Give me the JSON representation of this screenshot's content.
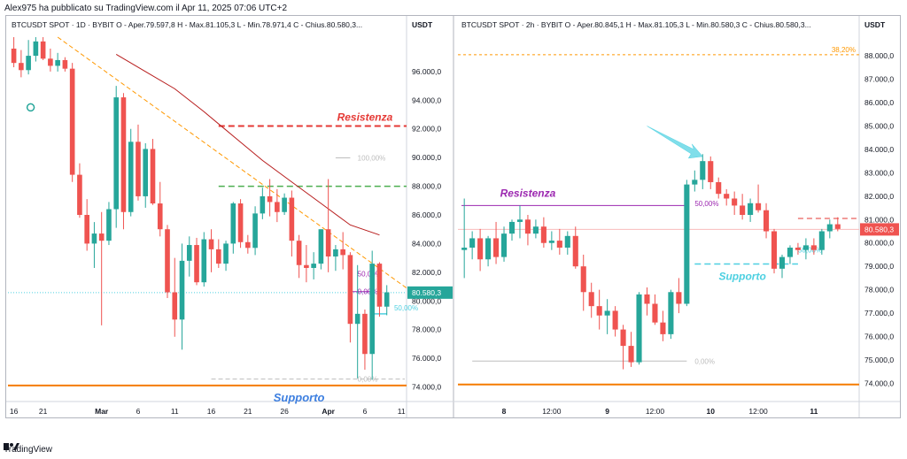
{
  "publisher": "Alex975 ha pubblicato su TradingView.com il Apr 11, 2025 07:06 UTC+2",
  "brand": "TradingView",
  "brand_icon": "tradingview-logo-icon",
  "colors": {
    "up": "#26a69a",
    "down": "#ef5350",
    "resistance_red": "#e53935",
    "support_orange": "#f57c00",
    "green_line": "#4caf50",
    "purple": "#9c27b0",
    "cyan": "#4dd0e1",
    "ma": "#b71c1c",
    "trend": "#ff9800",
    "price_line": "#ef5350",
    "fib_gray": "#bdbdbd"
  },
  "chart_data": [
    {
      "type": "candlestick",
      "header": "BTCUSDT SPOT · 1D · BYBIT  O - Aper.79.597,8  H - Max.81.105,3  L - Min.78.971,4  C - Chius.80.580,3...",
      "currency": "USDT",
      "y_ticks": [
        "74.000,0",
        "76.000,0",
        "78.000,0",
        "80.000,0",
        "82.000,0",
        "84.000,0",
        "86.000,0",
        "88.000,0",
        "90.000,0",
        "92.000,0",
        "94.000,0",
        "96.000,0"
      ],
      "ylim": [
        73600,
        98400
      ],
      "x_ticks": [
        {
          "label": "16",
          "i": 0
        },
        {
          "label": "21",
          "i": 4
        },
        {
          "label": "Mar",
          "i": 12
        },
        {
          "label": "6",
          "i": 17
        },
        {
          "label": "11",
          "i": 22
        },
        {
          "label": "16",
          "i": 27
        },
        {
          "label": "21",
          "i": 32
        },
        {
          "label": "26",
          "i": 37
        },
        {
          "label": "Apr",
          "i": 43
        },
        {
          "label": "6",
          "i": 48
        },
        {
          "label": "11",
          "i": 53
        },
        {
          "label": "16",
          "i": 58
        }
      ],
      "candles": [
        {
          "o": 97600,
          "h": 98400,
          "l": 96300,
          "c": 96600
        },
        {
          "o": 96600,
          "h": 97500,
          "l": 95600,
          "c": 96100
        },
        {
          "o": 96100,
          "h": 98200,
          "l": 95800,
          "c": 97100
        },
        {
          "o": 97100,
          "h": 98400,
          "l": 96700,
          "c": 98100
        },
        {
          "o": 98100,
          "h": 98400,
          "l": 96800,
          "c": 96900
        },
        {
          "o": 96900,
          "h": 97600,
          "l": 96000,
          "c": 96400
        },
        {
          "o": 96400,
          "h": 97300,
          "l": 96000,
          "c": 96800
        },
        {
          "o": 96800,
          "h": 97000,
          "l": 96000,
          "c": 96200
        },
        {
          "o": 96200,
          "h": 96600,
          "l": 88300,
          "c": 88800
        },
        {
          "o": 88800,
          "h": 89600,
          "l": 85800,
          "c": 86000
        },
        {
          "o": 86000,
          "h": 87100,
          "l": 83500,
          "c": 84000
        },
        {
          "o": 84000,
          "h": 85500,
          "l": 82300,
          "c": 84700
        },
        {
          "o": 84700,
          "h": 86200,
          "l": 78300,
          "c": 84200
        },
        {
          "o": 84200,
          "h": 86900,
          "l": 83900,
          "c": 86400
        },
        {
          "o": 86400,
          "h": 95000,
          "l": 85100,
          "c": 94200
        },
        {
          "o": 94200,
          "h": 94500,
          "l": 85000,
          "c": 86200
        },
        {
          "o": 86200,
          "h": 92000,
          "l": 85900,
          "c": 91100
        },
        {
          "o": 91100,
          "h": 92300,
          "l": 87000,
          "c": 87300
        },
        {
          "o": 87300,
          "h": 91000,
          "l": 86500,
          "c": 90600
        },
        {
          "o": 90600,
          "h": 91300,
          "l": 86700,
          "c": 86800
        },
        {
          "o": 86800,
          "h": 88300,
          "l": 84500,
          "c": 85000
        },
        {
          "o": 85000,
          "h": 85300,
          "l": 80200,
          "c": 80600
        },
        {
          "o": 80600,
          "h": 83000,
          "l": 77500,
          "c": 78700
        },
        {
          "o": 78700,
          "h": 84000,
          "l": 76600,
          "c": 82800
        },
        {
          "o": 82800,
          "h": 84500,
          "l": 81700,
          "c": 83900
        },
        {
          "o": 83900,
          "h": 84400,
          "l": 81100,
          "c": 81300
        },
        {
          "o": 81300,
          "h": 84800,
          "l": 81000,
          "c": 84300
        },
        {
          "o": 84300,
          "h": 85000,
          "l": 82000,
          "c": 83600
        },
        {
          "o": 83600,
          "h": 84300,
          "l": 82300,
          "c": 82600
        },
        {
          "o": 82600,
          "h": 84200,
          "l": 82100,
          "c": 84000
        },
        {
          "o": 84000,
          "h": 86900,
          "l": 83300,
          "c": 86800
        },
        {
          "o": 86800,
          "h": 87100,
          "l": 83700,
          "c": 84100
        },
        {
          "o": 84100,
          "h": 84600,
          "l": 83300,
          "c": 83700
        },
        {
          "o": 83700,
          "h": 86600,
          "l": 83200,
          "c": 86100
        },
        {
          "o": 86100,
          "h": 87900,
          "l": 85700,
          "c": 87300
        },
        {
          "o": 87300,
          "h": 88500,
          "l": 85900,
          "c": 86900
        },
        {
          "o": 86900,
          "h": 87800,
          "l": 85500,
          "c": 86200
        },
        {
          "o": 86200,
          "h": 87500,
          "l": 86000,
          "c": 87200
        },
        {
          "o": 87200,
          "h": 87700,
          "l": 83100,
          "c": 84200
        },
        {
          "o": 84200,
          "h": 84600,
          "l": 81600,
          "c": 82500
        },
        {
          "o": 82500,
          "h": 83900,
          "l": 81300,
          "c": 82300
        },
        {
          "o": 82300,
          "h": 83400,
          "l": 81500,
          "c": 82600
        },
        {
          "o": 82600,
          "h": 85000,
          "l": 82200,
          "c": 85000
        },
        {
          "o": 85000,
          "h": 88500,
          "l": 82000,
          "c": 83100
        },
        {
          "o": 83100,
          "h": 83900,
          "l": 82100,
          "c": 83600
        },
        {
          "o": 83600,
          "h": 84800,
          "l": 82200,
          "c": 83200
        },
        {
          "o": 83200,
          "h": 83400,
          "l": 77100,
          "c": 78400
        },
        {
          "o": 78400,
          "h": 82500,
          "l": 74600,
          "c": 79100
        },
        {
          "o": 79100,
          "h": 79400,
          "l": 75200,
          "c": 76300
        },
        {
          "o": 76300,
          "h": 83500,
          "l": 74500,
          "c": 82600
        },
        {
          "o": 82600,
          "h": 82700,
          "l": 78900,
          "c": 79600
        },
        {
          "o": 79600,
          "h": 81100,
          "l": 79000,
          "c": 80600
        }
      ],
      "moving_average": [
        [
          14,
          97200
        ],
        [
          18,
          96000
        ],
        [
          22,
          94800
        ],
        [
          26,
          93200
        ],
        [
          30,
          91500
        ],
        [
          34,
          89800
        ],
        [
          38,
          88300
        ],
        [
          42,
          86800
        ],
        [
          46,
          85300
        ],
        [
          50,
          84600
        ]
      ],
      "trendline": [
        [
          6,
          98400
        ],
        [
          54,
          80900
        ]
      ],
      "last_price": 80580.3,
      "last_price_label": "80.580,3",
      "resistance": {
        "price": 92200,
        "label": "Resistenza"
      },
      "support": {
        "price": 74100,
        "label": "Supporto"
      },
      "green_level": 88000,
      "fib": [
        {
          "price": 89980,
          "label": "100,00%"
        },
        {
          "price": 81900,
          "label": "50,00%"
        },
        {
          "price": 80650,
          "label": "0,00%"
        },
        {
          "price": 74550,
          "label": "0,00%"
        }
      ],
      "cyan_level": {
        "price": 79100,
        "label": "50,00%"
      }
    },
    {
      "type": "candlestick",
      "header": "BTCUSDT SPOT · 2h · BYBIT  O - Aper.80.845,1  H - Max.81.105,3  L - Min.80.580,3  C - Chius.80.580,3...",
      "currency": "USDT",
      "y_ticks": [
        "74.000,0",
        "75.000,0",
        "76.000,0",
        "77.000,0",
        "78.000,0",
        "79.000,0",
        "80.000,0",
        "81.000,0",
        "82.000,0",
        "83.000,0",
        "84.000,0",
        "85.000,0",
        "86.000,0",
        "87.000,0",
        "88.000,0"
      ],
      "ylim": [
        73600,
        88800
      ],
      "x_ticks": [
        {
          "label": "8",
          "i": 5
        },
        {
          "label": "12:00",
          "i": 11
        },
        {
          "label": "9",
          "i": 18
        },
        {
          "label": "12:00",
          "i": 24
        },
        {
          "label": "10",
          "i": 31
        },
        {
          "label": "12:00",
          "i": 37
        },
        {
          "label": "11",
          "i": 44
        },
        {
          "label": "12:00",
          "i": 50
        }
      ],
      "candles": [
        {
          "o": 79700,
          "h": 81900,
          "l": 78500,
          "c": 79800
        },
        {
          "o": 79800,
          "h": 80500,
          "l": 79300,
          "c": 80200
        },
        {
          "o": 80200,
          "h": 80600,
          "l": 78800,
          "c": 79300
        },
        {
          "o": 79300,
          "h": 80300,
          "l": 79000,
          "c": 80200
        },
        {
          "o": 80200,
          "h": 80900,
          "l": 79100,
          "c": 79400
        },
        {
          "o": 79400,
          "h": 80700,
          "l": 79200,
          "c": 80400
        },
        {
          "o": 80400,
          "h": 81000,
          "l": 80100,
          "c": 80900
        },
        {
          "o": 80900,
          "h": 81600,
          "l": 80200,
          "c": 81000
        },
        {
          "o": 81000,
          "h": 81200,
          "l": 79900,
          "c": 80400
        },
        {
          "o": 80400,
          "h": 81000,
          "l": 80200,
          "c": 80700
        },
        {
          "o": 80700,
          "h": 81100,
          "l": 79800,
          "c": 80000
        },
        {
          "o": 80000,
          "h": 80500,
          "l": 79700,
          "c": 80100
        },
        {
          "o": 80100,
          "h": 80600,
          "l": 79500,
          "c": 79800
        },
        {
          "o": 79800,
          "h": 80500,
          "l": 79500,
          "c": 80300
        },
        {
          "o": 80300,
          "h": 80700,
          "l": 78900,
          "c": 79000
        },
        {
          "o": 79000,
          "h": 79500,
          "l": 77100,
          "c": 77900
        },
        {
          "o": 77900,
          "h": 78300,
          "l": 76800,
          "c": 77300
        },
        {
          "o": 77300,
          "h": 78000,
          "l": 76300,
          "c": 76900
        },
        {
          "o": 76900,
          "h": 77600,
          "l": 76100,
          "c": 77100
        },
        {
          "o": 77100,
          "h": 77300,
          "l": 76000,
          "c": 76300
        },
        {
          "o": 76300,
          "h": 76500,
          "l": 74600,
          "c": 75600
        },
        {
          "o": 75600,
          "h": 76200,
          "l": 74700,
          "c": 74900
        },
        {
          "o": 74900,
          "h": 77900,
          "l": 74800,
          "c": 77800
        },
        {
          "o": 77800,
          "h": 78100,
          "l": 76900,
          "c": 77400
        },
        {
          "o": 77400,
          "h": 77800,
          "l": 76500,
          "c": 76600
        },
        {
          "o": 76600,
          "h": 77100,
          "l": 75800,
          "c": 76100
        },
        {
          "o": 76100,
          "h": 78000,
          "l": 75900,
          "c": 77900
        },
        {
          "o": 77900,
          "h": 78500,
          "l": 77000,
          "c": 77400
        },
        {
          "o": 77400,
          "h": 82700,
          "l": 77300,
          "c": 82500
        },
        {
          "o": 82500,
          "h": 83100,
          "l": 82200,
          "c": 82700
        },
        {
          "o": 82700,
          "h": 83800,
          "l": 82300,
          "c": 83500
        },
        {
          "o": 83500,
          "h": 83700,
          "l": 82300,
          "c": 82600
        },
        {
          "o": 82600,
          "h": 82800,
          "l": 81900,
          "c": 82100
        },
        {
          "o": 82100,
          "h": 82300,
          "l": 81600,
          "c": 81900
        },
        {
          "o": 81900,
          "h": 82200,
          "l": 81200,
          "c": 81600
        },
        {
          "o": 81600,
          "h": 82100,
          "l": 81000,
          "c": 81200
        },
        {
          "o": 81200,
          "h": 81900,
          "l": 80900,
          "c": 81700
        },
        {
          "o": 81700,
          "h": 82500,
          "l": 81300,
          "c": 81400
        },
        {
          "o": 81400,
          "h": 81700,
          "l": 80200,
          "c": 80500
        },
        {
          "o": 80500,
          "h": 80600,
          "l": 78700,
          "c": 78900
        },
        {
          "o": 78900,
          "h": 79500,
          "l": 78500,
          "c": 79400
        },
        {
          "o": 79400,
          "h": 79900,
          "l": 79100,
          "c": 79800
        },
        {
          "o": 79800,
          "h": 80000,
          "l": 79500,
          "c": 79700
        },
        {
          "o": 79700,
          "h": 80200,
          "l": 79300,
          "c": 79900
        },
        {
          "o": 79900,
          "h": 80200,
          "l": 79500,
          "c": 79700
        },
        {
          "o": 79700,
          "h": 80600,
          "l": 79500,
          "c": 80500
        },
        {
          "o": 80500,
          "h": 81000,
          "l": 80200,
          "c": 80800
        },
        {
          "o": 80800,
          "h": 81100,
          "l": 80500,
          "c": 80600
        }
      ],
      "last_price": 80580.3,
      "last_price_label": "80.580,3",
      "fib_top": {
        "price": 88050,
        "label": "38,20%"
      },
      "fib_labels": [
        {
          "price": 81700,
          "label": "50,00%"
        },
        {
          "price": 79700,
          "label": "50,00%"
        },
        {
          "price": 74950,
          "label": "0,00%"
        }
      ],
      "resistance": {
        "price": 81600,
        "label": "Resistenza"
      },
      "support": {
        "price": 79100,
        "label": "Supporto"
      },
      "support_orange": 73950,
      "red_dashed": 81050
    }
  ]
}
